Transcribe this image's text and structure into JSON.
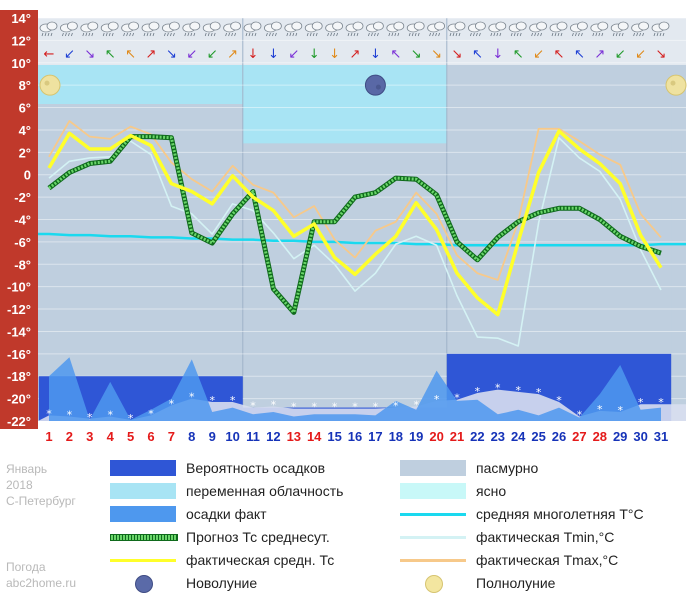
{
  "chart_data": {
    "type": "line",
    "ylim": [
      -22,
      14
    ],
    "y_ticks": [
      14,
      12,
      10,
      8,
      6,
      4,
      2,
      0,
      -2,
      -4,
      -6,
      -8,
      -10,
      -12,
      -14,
      -16,
      -18,
      -20,
      -22
    ],
    "y_tick_labels": [
      "14°",
      "12°",
      "10°",
      "8°",
      "6°",
      "4°",
      "2°",
      "0",
      "-2°",
      "-4°",
      "-6°",
      "-8°",
      "-10°",
      "-12°",
      "-14°",
      "-16°",
      "-18°",
      "-20°",
      "-22°"
    ],
    "days": [
      1,
      2,
      3,
      4,
      5,
      6,
      7,
      8,
      9,
      10,
      11,
      12,
      13,
      14,
      15,
      16,
      17,
      18,
      19,
      20,
      21,
      22,
      23,
      24,
      25,
      26,
      27,
      28,
      29,
      30,
      31
    ],
    "day_labels": [
      "1",
      "2",
      "3",
      "4",
      "5",
      "6",
      "7",
      "8",
      "9",
      "10",
      "11",
      "12",
      "13",
      "14",
      "15",
      "16",
      "17",
      "18",
      "19",
      "20",
      "21",
      "22",
      "23",
      "24",
      "25",
      "26",
      "27",
      "28",
      "29",
      "30",
      "31"
    ],
    "red_days": [
      1,
      2,
      3,
      4,
      5,
      6,
      7,
      13,
      14,
      20,
      21,
      27,
      28
    ],
    "cloud_bands": [
      {
        "from": 0.5,
        "to": 10.5,
        "type": "overcast"
      },
      {
        "from": 10.5,
        "to": 20.5,
        "type": "partly"
      },
      {
        "from": 20.5,
        "to": 31.5,
        "type": "overcast"
      }
    ],
    "precip_probability_bands": [
      {
        "from": 0.5,
        "to": 10.5,
        "level": -18
      },
      {
        "from": 10.5,
        "to": 20.5,
        "level": -20.8
      },
      {
        "from": 20.5,
        "to": 31.5,
        "level": -16
      }
    ],
    "precip_fact": [
      -18,
      -16.3,
      -21.9,
      -18.5,
      -21.9,
      -21,
      -20,
      -16.5,
      -21.2,
      -20.8,
      -21.4,
      -21.2,
      -21.6,
      -21.4,
      -21.4,
      -21.4,
      -21.5,
      -20.2,
      -21,
      -17.5,
      -20.2,
      -20.1,
      -21.4,
      -21,
      -21.5,
      -20.8,
      -21.7,
      -19.6,
      -17,
      -21,
      -20.8
    ],
    "snow_cover": [
      -21.5,
      -21.6,
      -21.8,
      -21.6,
      -21.9,
      -21.5,
      -20.6,
      -20,
      -20.3,
      -20.3,
      -20.8,
      -20.7,
      -20.9,
      -20.9,
      -20.9,
      -20.9,
      -20.9,
      -20.8,
      -20.7,
      -20.2,
      -20.1,
      -19.5,
      -19.2,
      -19.4,
      -19.6,
      -20.3,
      -21.6,
      -21.1,
      -21.2,
      -20.5,
      -20.5
    ],
    "series": [
      {
        "name": "Прогноз Тс среднесут.",
        "values": [
          -1.2,
          0.2,
          1.0,
          1.2,
          3.4,
          3.4,
          3.3,
          -5.2,
          -6.1,
          -3.5,
          -1.5,
          -10.2,
          -12.3,
          -4.2,
          -4.2,
          -2.0,
          -1.6,
          -0.3,
          -0.4,
          -1.8,
          -6.0,
          -7.6,
          -5.6,
          -4.2,
          -3.4,
          -3.0,
          -3.0,
          -4.0,
          -5.5,
          -6.4,
          -7.0
        ]
      },
      {
        "name": "фактическая средн. Тс",
        "values": [
          0.6,
          3.7,
          2.3,
          2.3,
          3.5,
          2.6,
          -0.8,
          -1.5,
          -2.6,
          -0.1,
          -2.0,
          -3.2,
          -5.5,
          -4.4,
          -7.4,
          -8.9,
          -7.1,
          -5.5,
          -2.5,
          -4.9,
          -8.8,
          -11.0,
          -12.5,
          -6.0,
          0.2,
          3.9,
          2.3,
          1.0,
          -0.8,
          -5.4,
          -8.3
        ]
      },
      {
        "name": "фактическая Tmin,°C",
        "values": [
          -0.3,
          1.2,
          1.5,
          1.6,
          3.0,
          1.8,
          -2.8,
          -3.5,
          -5.3,
          -2.6,
          -3.2,
          -5.2,
          -7.5,
          -6.3,
          -8.0,
          -10.4,
          -8.8,
          -6.2,
          -5.5,
          -6.3,
          -10.8,
          -14.5,
          -14.6,
          -15.3,
          -4.3,
          3.3,
          1.5,
          0.3,
          -2.2,
          -6.7,
          -10.3
        ]
      },
      {
        "name": "фактическая Tmax,°C",
        "values": [
          1.6,
          4.8,
          3.4,
          3.2,
          4.3,
          3.6,
          1.1,
          -0.4,
          -1.5,
          0.8,
          -0.9,
          -1.6,
          -3.8,
          -2.8,
          -5.8,
          -7.4,
          -5.0,
          -4.2,
          -1.6,
          -3.5,
          -7.2,
          -8.8,
          -9.4,
          -4.2,
          4.1,
          4.1,
          3.0,
          1.8,
          0.9,
          -3.5,
          -5.6
        ]
      },
      {
        "name": "средняя многолетняя T°C",
        "values": [
          -5.3,
          -5.4,
          -5.4,
          -5.5,
          -5.5,
          -5.6,
          -5.6,
          -5.7,
          -5.7,
          -5.8,
          -5.8,
          -5.9,
          -5.9,
          -6.0,
          -6.0,
          -6.1,
          -6.1,
          -6.1,
          -6.2,
          -6.2,
          -6.3,
          -6.3,
          -6.3,
          -6.3,
          -6.3,
          -6.3,
          -6.3,
          -6.3,
          -6.3,
          -6.3,
          -6.2
        ]
      }
    ],
    "moon_markers": [
      {
        "day": 1,
        "phase": "full"
      },
      {
        "day": 17,
        "phase": "new"
      },
      {
        "day": 31,
        "phase": "full"
      }
    ],
    "wind_row": [
      "←",
      "↙",
      "↘",
      "↖",
      "↖",
      "↗",
      "↘",
      "↙",
      "↙",
      "↗",
      "↓",
      "↓",
      "↙",
      "↓",
      "↓",
      "↗",
      "↓",
      "↖",
      "↘",
      "↘",
      "↘",
      "↖",
      "↓",
      "↖",
      "↙",
      "↖",
      "↖",
      "↗",
      "↙",
      "↙",
      "↘"
    ],
    "colors": {
      "overcast": "#bfcfdf",
      "partly": "#a8e4f4",
      "clear": "#c8f8f8",
      "precip_prob": "#2f56d6",
      "precip_fact": "#4e98ee",
      "forecast": "#20a030",
      "fact_avg": "#ffff2a",
      "tmin": "#d4f2f4",
      "tmax": "#f7c98a",
      "norm": "#1ad9ef",
      "red_day": "#e41a1a",
      "blue_day": "#1633b8",
      "axis_text": "#ffffff"
    }
  },
  "legend": {
    "items": [
      {
        "key": "precip_prob",
        "label": "Вероятность осадков",
        "kind": "rect",
        "color": "#2f56d6"
      },
      {
        "key": "overcast",
        "label": "пасмурно",
        "kind": "rect",
        "color": "#bfcfdf"
      },
      {
        "key": "partly",
        "label": "переменная облачность",
        "kind": "rect",
        "color": "#a8e4f4"
      },
      {
        "key": "clear",
        "label": "ясно",
        "kind": "rect",
        "color": "#c8f8f8"
      },
      {
        "key": "precip_fact",
        "label": "осадки факт",
        "kind": "rect",
        "color": "#4e98ee"
      },
      {
        "key": "norm",
        "label": "средняя многолетняя T°C",
        "kind": "line",
        "color": "#1ad9ef"
      },
      {
        "key": "forecast",
        "label": "Прогноз Тс среднесут.",
        "kind": "dotted",
        "color": "#20a030"
      },
      {
        "key": "tmin",
        "label": "фактическая Tmin,°C",
        "kind": "line",
        "color": "#d4f2f4"
      },
      {
        "key": "fact_avg",
        "label": "фактическая средн. Тс",
        "kind": "line",
        "color": "#ffff2a"
      },
      {
        "key": "tmax",
        "label": "фактическая Tmax,°C",
        "kind": "line",
        "color": "#f7c98a"
      },
      {
        "key": "new_moon",
        "label": "Новолуние",
        "kind": "newmoon",
        "color": "#5a6aa8"
      },
      {
        "key": "full_moon",
        "label": "Полнолуние",
        "kind": "fullmoon",
        "color": "#f3e6a0"
      }
    ]
  },
  "side": {
    "month": "Январь",
    "year": "2018",
    "city": "С-Петербург",
    "site_line1": "Погода",
    "site_line2": "abc2home.ru"
  }
}
